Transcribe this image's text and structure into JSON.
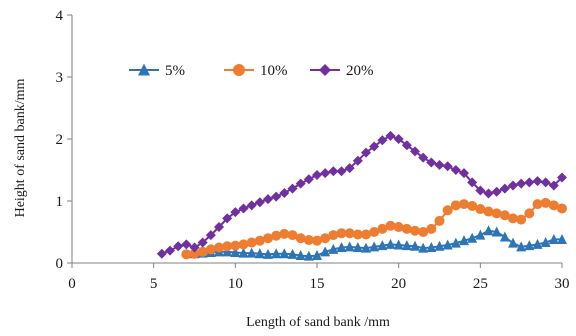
{
  "chart_data": {
    "type": "line",
    "title": "",
    "xlabel": "Length of sand bank /mm",
    "ylabel": "Height of sand bank/mm",
    "xlim": [
      0,
      30
    ],
    "ylim": [
      0,
      4
    ],
    "xticks": [
      0,
      5,
      10,
      15,
      20,
      25,
      30
    ],
    "yticks": [
      0,
      1,
      2,
      3,
      4
    ],
    "grid": false,
    "legend_position": "top-left inside",
    "series": [
      {
        "name": "5%",
        "color": "#2e75b6",
        "marker": "triangle",
        "x": [
          7.5,
          8,
          8.5,
          9,
          9.5,
          10,
          10.5,
          11,
          11.5,
          12,
          12.5,
          13,
          13.5,
          14,
          14.5,
          15,
          15.5,
          16,
          16.5,
          17,
          17.5,
          18,
          18.5,
          19,
          19.5,
          20,
          20.5,
          21,
          21.5,
          22,
          22.5,
          23,
          23.5,
          24,
          24.5,
          25,
          25.5,
          26,
          26.5,
          27,
          27.5,
          28,
          28.5,
          29,
          29.5,
          30
        ],
        "y": [
          0.15,
          0.16,
          0.17,
          0.18,
          0.18,
          0.17,
          0.16,
          0.16,
          0.15,
          0.14,
          0.15,
          0.15,
          0.14,
          0.12,
          0.11,
          0.12,
          0.18,
          0.22,
          0.25,
          0.26,
          0.25,
          0.24,
          0.26,
          0.28,
          0.3,
          0.29,
          0.28,
          0.27,
          0.24,
          0.25,
          0.27,
          0.29,
          0.32,
          0.36,
          0.4,
          0.45,
          0.52,
          0.5,
          0.42,
          0.32,
          0.26,
          0.28,
          0.3,
          0.33,
          0.38,
          0.38
        ]
      },
      {
        "name": "10%",
        "color": "#ed7d31",
        "marker": "circle",
        "x": [
          7,
          7.5,
          8,
          8.5,
          9,
          9.5,
          10,
          10.5,
          11,
          11.5,
          12,
          12.5,
          13,
          13.5,
          14,
          14.5,
          15,
          15.5,
          16,
          16.5,
          17,
          17.5,
          18,
          18.5,
          19,
          19.5,
          20,
          20.5,
          21,
          21.5,
          22,
          22.5,
          23,
          23.5,
          24,
          24.5,
          25,
          25.5,
          26,
          26.5,
          27,
          27.5,
          28,
          28.5,
          29,
          29.5,
          30
        ],
        "y": [
          0.14,
          0.15,
          0.18,
          0.22,
          0.25,
          0.27,
          0.28,
          0.3,
          0.33,
          0.36,
          0.4,
          0.44,
          0.47,
          0.45,
          0.4,
          0.37,
          0.36,
          0.4,
          0.45,
          0.48,
          0.48,
          0.46,
          0.46,
          0.5,
          0.55,
          0.6,
          0.58,
          0.55,
          0.52,
          0.5,
          0.55,
          0.68,
          0.85,
          0.93,
          0.95,
          0.92,
          0.87,
          0.83,
          0.8,
          0.77,
          0.72,
          0.7,
          0.8,
          0.95,
          0.97,
          0.93,
          0.88
        ]
      },
      {
        "name": "20%",
        "color": "#7030a0",
        "marker": "diamond",
        "x": [
          5.5,
          6,
          6.5,
          7,
          7.5,
          8,
          8.5,
          9,
          9.5,
          10,
          10.5,
          11,
          11.5,
          12,
          12.5,
          13,
          13.5,
          14,
          14.5,
          15,
          15.5,
          16,
          16.5,
          17,
          17.5,
          18,
          18.5,
          19,
          19.5,
          20,
          20.5,
          21,
          21.5,
          22,
          22.5,
          23,
          23.5,
          24,
          24.5,
          25,
          25.5,
          26,
          26.5,
          27,
          27.5,
          28,
          28.5,
          29,
          29.5,
          30
        ],
        "y": [
          0.15,
          0.2,
          0.27,
          0.3,
          0.25,
          0.33,
          0.45,
          0.58,
          0.72,
          0.82,
          0.88,
          0.93,
          0.98,
          1.03,
          1.07,
          1.13,
          1.2,
          1.28,
          1.35,
          1.42,
          1.45,
          1.48,
          1.48,
          1.53,
          1.65,
          1.78,
          1.88,
          1.98,
          2.05,
          2.0,
          1.9,
          1.8,
          1.7,
          1.62,
          1.58,
          1.56,
          1.5,
          1.45,
          1.3,
          1.17,
          1.12,
          1.15,
          1.2,
          1.25,
          1.28,
          1.3,
          1.32,
          1.3,
          1.25,
          1.38
        ]
      }
    ]
  }
}
